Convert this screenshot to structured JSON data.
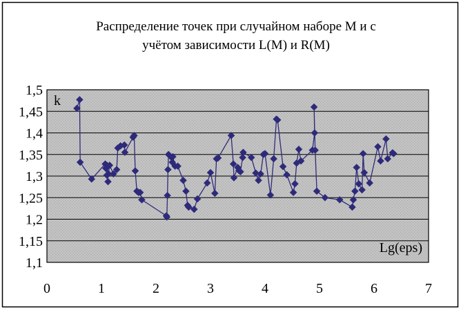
{
  "chart_data": {
    "type": "line",
    "title": "Распределение точек при случайном наборе М и с учётом зависимости L(M) и R(M)",
    "title_lines": [
      "Распределение точек при случайном наборе М и с",
      "учётом зависимости L(M) и R(M)"
    ],
    "xlabel": "Lg(eps)",
    "ylabel": "k",
    "xlim": [
      0,
      7
    ],
    "ylim": [
      1.1,
      1.5
    ],
    "x_ticks": [
      0,
      1,
      2,
      3,
      4,
      5,
      6,
      7
    ],
    "y_ticks": [
      1.1,
      1.15,
      1.2,
      1.25,
      1.3,
      1.35,
      1.4,
      1.45,
      1.5
    ],
    "x_tick_labels": [
      "0",
      "1",
      "2",
      "3",
      "4",
      "5",
      "6",
      "7"
    ],
    "y_tick_labels": [
      "1,1",
      "1,15",
      "1,2",
      "1,25",
      "1,3",
      "1,35",
      "1,4",
      "1,45",
      "1,5"
    ],
    "grid": "horizontal",
    "legend": "none",
    "colors": {
      "series": "#2e2a7a",
      "plot_background": "#c0c0c0",
      "gridline": "#000000",
      "frame": "#000000"
    },
    "marker": "diamond",
    "series": [
      {
        "x": [
          0.55,
          0.6,
          0.61,
          0.82,
          1.07,
          1.1,
          1.08,
          1.12,
          1.1,
          1.13,
          1.15,
          1.22,
          1.28,
          1.3,
          1.35,
          1.42,
          1.43,
          1.58,
          1.6,
          1.62,
          1.65,
          1.68,
          1.71,
          1.74,
          2.19,
          2.2,
          2.21,
          2.22,
          2.23,
          2.27,
          2.3,
          2.31,
          2.35,
          2.4,
          2.5,
          2.55,
          2.58,
          2.6,
          2.7,
          2.76,
          2.94,
          3.0,
          3.08,
          3.11,
          3.14,
          3.38,
          3.42,
          3.43,
          3.5,
          3.52,
          3.55,
          3.59,
          3.6,
          3.75,
          3.83,
          3.88,
          3.92,
          3.97,
          4.0,
          4.1,
          4.16,
          4.21,
          4.23,
          4.33,
          4.4,
          4.52,
          4.55,
          4.58,
          4.62,
          4.66,
          4.87,
          4.91,
          4.9,
          4.92,
          4.95,
          5.1,
          5.37,
          5.6,
          5.62,
          5.65,
          5.68,
          5.72,
          5.78,
          5.8,
          5.82,
          5.92,
          6.07,
          6.12,
          6.22,
          6.25,
          6.34,
          6.36
        ],
        "y": [
          1.457,
          1.477,
          1.332,
          1.293,
          1.328,
          1.302,
          1.318,
          1.287,
          1.325,
          1.305,
          1.325,
          1.305,
          1.315,
          1.365,
          1.37,
          1.372,
          1.355,
          1.39,
          1.394,
          1.312,
          1.265,
          1.262,
          1.262,
          1.245,
          1.208,
          1.205,
          1.255,
          1.315,
          1.35,
          1.345,
          1.332,
          1.345,
          1.323,
          1.323,
          1.29,
          1.265,
          1.232,
          1.228,
          1.223,
          1.247,
          1.284,
          1.308,
          1.26,
          1.34,
          1.342,
          1.394,
          1.328,
          1.296,
          1.32,
          1.313,
          1.31,
          1.343,
          1.355,
          1.343,
          1.307,
          1.29,
          1.305,
          1.35,
          1.352,
          1.256,
          1.34,
          1.432,
          1.43,
          1.322,
          1.303,
          1.262,
          1.282,
          1.33,
          1.362,
          1.335,
          1.36,
          1.4,
          1.46,
          1.36,
          1.265,
          1.25,
          1.245,
          1.228,
          1.245,
          1.265,
          1.32,
          1.282,
          1.268,
          1.352,
          1.308,
          1.284,
          1.368,
          1.335,
          1.386,
          1.34,
          1.354,
          1.352
        ]
      }
    ]
  }
}
